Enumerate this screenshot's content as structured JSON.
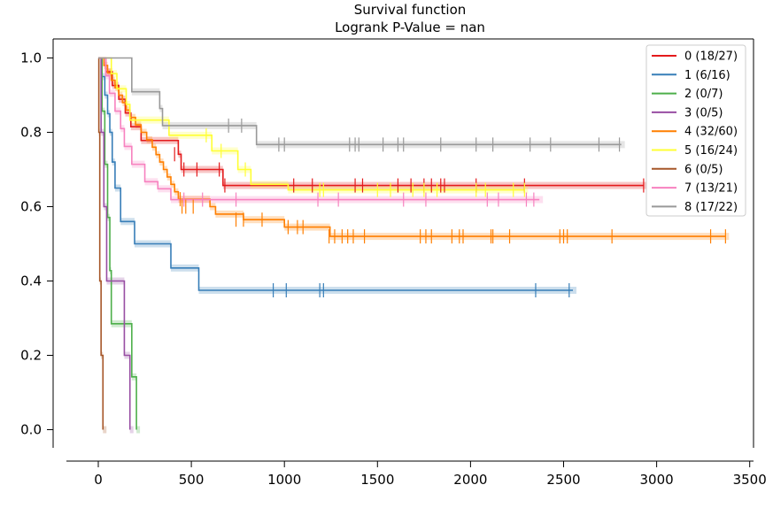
{
  "chart_data": {
    "type": "line",
    "title": "Survival function",
    "subtitle": "Logrank P-Value = nan",
    "xlabel": "",
    "ylabel": "",
    "xlim": [
      -170,
      3510
    ],
    "ylim": [
      -0.05,
      1.05
    ],
    "x_ticks": [
      0,
      500,
      1000,
      1500,
      2000,
      2500,
      3000,
      3500
    ],
    "y_ticks": [
      0.0,
      0.2,
      0.4,
      0.6,
      0.8,
      1.0
    ],
    "x_tick_labels": [
      "0",
      "500",
      "1000",
      "1500",
      "2000",
      "2500",
      "3000",
      "3500"
    ],
    "y_tick_labels": [
      "0.0",
      "0.2",
      "0.4",
      "0.6",
      "0.8",
      "1.0"
    ],
    "grid": false,
    "legend_position": "top-right",
    "series": [
      {
        "name": "0 (18/27)",
        "color": "#e41a1c",
        "steps": [
          [
            0,
            1.0
          ],
          [
            40,
            0.963
          ],
          [
            75,
            0.926
          ],
          [
            110,
            0.889
          ],
          [
            145,
            0.852
          ],
          [
            175,
            0.815
          ],
          [
            230,
            0.778
          ],
          [
            430,
            0.741
          ],
          [
            445,
            0.7
          ],
          [
            670,
            0.657
          ],
          [
            2930,
            0.657
          ]
        ],
        "censors": [
          [
            410,
            0.741
          ],
          [
            460,
            0.7
          ],
          [
            530,
            0.7
          ],
          [
            650,
            0.7
          ],
          [
            680,
            0.657
          ],
          [
            1050,
            0.657
          ],
          [
            1150,
            0.657
          ],
          [
            1380,
            0.657
          ],
          [
            1420,
            0.657
          ],
          [
            1610,
            0.657
          ],
          [
            1680,
            0.657
          ],
          [
            1750,
            0.657
          ],
          [
            1790,
            0.657
          ],
          [
            1840,
            0.657
          ],
          [
            1860,
            0.657
          ],
          [
            2030,
            0.657
          ],
          [
            2290,
            0.657
          ],
          [
            2930,
            0.657
          ]
        ]
      },
      {
        "name": "1 (6/16)",
        "color": "#377eb8",
        "steps": [
          [
            0,
            1.0
          ],
          [
            20,
            0.95
          ],
          [
            35,
            0.9
          ],
          [
            50,
            0.85
          ],
          [
            62,
            0.8
          ],
          [
            75,
            0.72
          ],
          [
            90,
            0.65
          ],
          [
            120,
            0.56
          ],
          [
            195,
            0.5
          ],
          [
            390,
            0.435
          ],
          [
            540,
            0.375
          ],
          [
            2550,
            0.375
          ]
        ],
        "censors": [
          [
            940,
            0.375
          ],
          [
            1010,
            0.375
          ],
          [
            1190,
            0.375
          ],
          [
            1210,
            0.375
          ],
          [
            2350,
            0.375
          ],
          [
            2530,
            0.375
          ]
        ]
      },
      {
        "name": "2 (0/7)",
        "color": "#4daf4a",
        "steps": [
          [
            0,
            1.0
          ],
          [
            20,
            0.857
          ],
          [
            35,
            0.714
          ],
          [
            50,
            0.571
          ],
          [
            62,
            0.428
          ],
          [
            70,
            0.285
          ],
          [
            180,
            0.142
          ],
          [
            205,
            0.0
          ]
        ],
        "censors": []
      },
      {
        "name": "3 (0/5)",
        "color": "#984ea3",
        "steps": [
          [
            0,
            1.0
          ],
          [
            15,
            0.8
          ],
          [
            30,
            0.6
          ],
          [
            45,
            0.4
          ],
          [
            140,
            0.2
          ],
          [
            170,
            0.0
          ]
        ],
        "censors": []
      },
      {
        "name": "4 (32/60)",
        "color": "#ff7f00",
        "steps": [
          [
            0,
            1.0
          ],
          [
            30,
            0.98
          ],
          [
            50,
            0.96
          ],
          [
            70,
            0.94
          ],
          [
            90,
            0.92
          ],
          [
            110,
            0.9
          ],
          [
            130,
            0.88
          ],
          [
            150,
            0.86
          ],
          [
            170,
            0.84
          ],
          [
            200,
            0.82
          ],
          [
            230,
            0.8
          ],
          [
            260,
            0.78
          ],
          [
            290,
            0.76
          ],
          [
            310,
            0.74
          ],
          [
            330,
            0.72
          ],
          [
            350,
            0.7
          ],
          [
            370,
            0.68
          ],
          [
            390,
            0.66
          ],
          [
            410,
            0.64
          ],
          [
            430,
            0.62
          ],
          [
            600,
            0.6
          ],
          [
            630,
            0.58
          ],
          [
            780,
            0.565
          ],
          [
            1000,
            0.545
          ],
          [
            1245,
            0.52
          ],
          [
            3370,
            0.52
          ]
        ],
        "censors": [
          [
            440,
            0.62
          ],
          [
            450,
            0.6
          ],
          [
            470,
            0.6
          ],
          [
            510,
            0.6
          ],
          [
            740,
            0.565
          ],
          [
            780,
            0.565
          ],
          [
            880,
            0.565
          ],
          [
            1020,
            0.545
          ],
          [
            1070,
            0.545
          ],
          [
            1100,
            0.545
          ],
          [
            1240,
            0.52
          ],
          [
            1270,
            0.52
          ],
          [
            1310,
            0.52
          ],
          [
            1340,
            0.52
          ],
          [
            1370,
            0.52
          ],
          [
            1430,
            0.52
          ],
          [
            1730,
            0.52
          ],
          [
            1760,
            0.52
          ],
          [
            1790,
            0.52
          ],
          [
            1900,
            0.52
          ],
          [
            1940,
            0.52
          ],
          [
            1960,
            0.52
          ],
          [
            2110,
            0.52
          ],
          [
            2120,
            0.52
          ],
          [
            2210,
            0.52
          ],
          [
            2480,
            0.52
          ],
          [
            2500,
            0.52
          ],
          [
            2520,
            0.52
          ],
          [
            2760,
            0.52
          ],
          [
            3290,
            0.52
          ],
          [
            3370,
            0.52
          ]
        ]
      },
      {
        "name": "5 (16/24)",
        "color": "#ffff33",
        "steps": [
          [
            0,
            1.0
          ],
          [
            70,
            0.958
          ],
          [
            100,
            0.917
          ],
          [
            150,
            0.875
          ],
          [
            170,
            0.833
          ],
          [
            380,
            0.792
          ],
          [
            610,
            0.75
          ],
          [
            750,
            0.7
          ],
          [
            820,
            0.66
          ],
          [
            1020,
            0.645
          ],
          [
            2290,
            0.645
          ]
        ],
        "censors": [
          [
            580,
            0.792
          ],
          [
            660,
            0.75
          ],
          [
            790,
            0.7
          ],
          [
            1190,
            0.645
          ],
          [
            1210,
            0.645
          ],
          [
            1500,
            0.645
          ],
          [
            1570,
            0.645
          ],
          [
            1690,
            0.645
          ],
          [
            1750,
            0.645
          ],
          [
            1820,
            0.645
          ],
          [
            2030,
            0.645
          ],
          [
            2080,
            0.645
          ],
          [
            2230,
            0.645
          ],
          [
            2290,
            0.645
          ]
        ]
      },
      {
        "name": "6 (0/5)",
        "color": "#a65628",
        "steps": [
          [
            0,
            1.0
          ],
          [
            3,
            0.8
          ],
          [
            8,
            0.4
          ],
          [
            15,
            0.2
          ],
          [
            25,
            0.0
          ]
        ],
        "censors": []
      },
      {
        "name": "7 (13/21)",
        "color": "#f781bf",
        "steps": [
          [
            0,
            1.0
          ],
          [
            40,
            0.952
          ],
          [
            60,
            0.905
          ],
          [
            90,
            0.857
          ],
          [
            120,
            0.81
          ],
          [
            140,
            0.762
          ],
          [
            180,
            0.714
          ],
          [
            250,
            0.667
          ],
          [
            320,
            0.648
          ],
          [
            390,
            0.619
          ],
          [
            2370,
            0.619
          ]
        ],
        "censors": [
          [
            460,
            0.619
          ],
          [
            560,
            0.619
          ],
          [
            740,
            0.619
          ],
          [
            1180,
            0.619
          ],
          [
            1290,
            0.619
          ],
          [
            1640,
            0.619
          ],
          [
            1760,
            0.619
          ],
          [
            2090,
            0.619
          ],
          [
            2150,
            0.619
          ],
          [
            2300,
            0.619
          ],
          [
            2340,
            0.619
          ]
        ]
      },
      {
        "name": "8 (17/22)",
        "color": "#999999",
        "steps": [
          [
            0,
            1.0
          ],
          [
            180,
            0.909
          ],
          [
            330,
            0.864
          ],
          [
            345,
            0.818
          ],
          [
            850,
            0.767
          ],
          [
            2810,
            0.767
          ]
        ],
        "censors": [
          [
            700,
            0.818
          ],
          [
            770,
            0.818
          ],
          [
            970,
            0.767
          ],
          [
            1000,
            0.767
          ],
          [
            1350,
            0.767
          ],
          [
            1380,
            0.767
          ],
          [
            1400,
            0.767
          ],
          [
            1530,
            0.767
          ],
          [
            1610,
            0.767
          ],
          [
            1640,
            0.767
          ],
          [
            1840,
            0.767
          ],
          [
            2030,
            0.767
          ],
          [
            2120,
            0.767
          ],
          [
            2320,
            0.767
          ],
          [
            2430,
            0.767
          ],
          [
            2690,
            0.767
          ],
          [
            2800,
            0.767
          ]
        ]
      }
    ]
  }
}
